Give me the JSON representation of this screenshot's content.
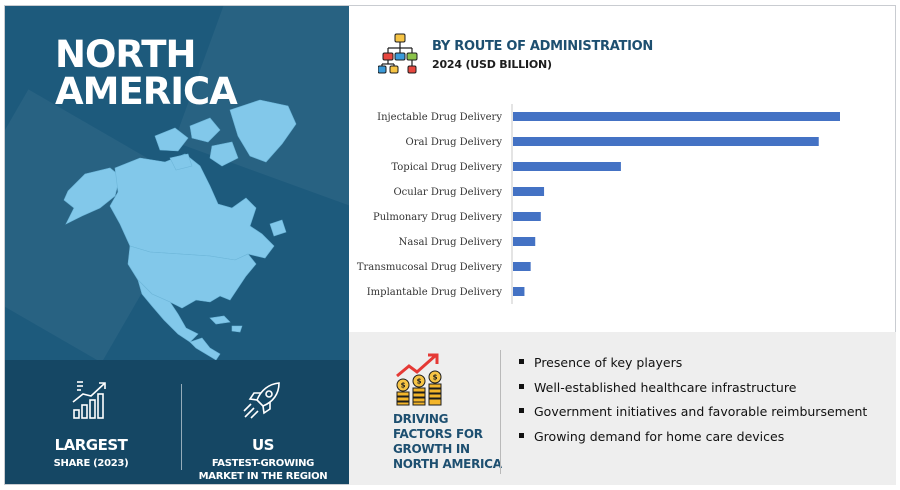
{
  "region": {
    "title_line1": "NORTH",
    "title_line2": "AMERICA"
  },
  "stats": [
    {
      "icon": "rising-bars-icon",
      "big": "LARGEST",
      "small": "SHARE (2023)"
    },
    {
      "icon": "rocket-icon",
      "big": "US",
      "small_line1": "FASTEST-GROWING",
      "small_line2": "MARKET IN THE REGION"
    }
  ],
  "chart_header": {
    "icon": "hierarchy-icon",
    "title": "BY ROUTE OF ADMINISTRATION",
    "subtitle": "2024 (USD BILLION)"
  },
  "chart_data": {
    "type": "bar",
    "orientation": "horizontal",
    "title": "BY ROUTE OF ADMINISTRATION",
    "subtitle": "2024 (USD BILLION)",
    "categories": [
      "Injectable Drug Delivery",
      "Oral Drug Delivery",
      "Topical Drug Delivery",
      "Ocular Drug Delivery",
      "Pulmonary Drug Delivery",
      "Nasal Drug Delivery",
      "Transmucosal Drug Delivery",
      "Implantable Drug Delivery"
    ],
    "values": [
      100,
      93.5,
      33,
      9.5,
      8.5,
      6.8,
      5.4,
      3.5
    ],
    "xlim": [
      0,
      100
    ],
    "axis_labels_shown": false,
    "grid": false,
    "legend": "none",
    "bar_color": "#4472c4"
  },
  "drivers": {
    "icon": "money-growth-icon",
    "title_lines": [
      "DRIVING",
      "FACTORS FOR",
      "GROWTH IN",
      "NORTH AMERICA"
    ],
    "items": [
      "Presence of key players",
      "Well-established healthcare infrastructure",
      "Government initiatives and favorable reimbursement",
      "Growing demand for home care devices"
    ]
  },
  "colors": {
    "panel": "#1d5a7c",
    "panel_dark": "#154764",
    "map": "#82c8ea",
    "accent_title": "#1d4f70",
    "bar": "#4472c4"
  }
}
